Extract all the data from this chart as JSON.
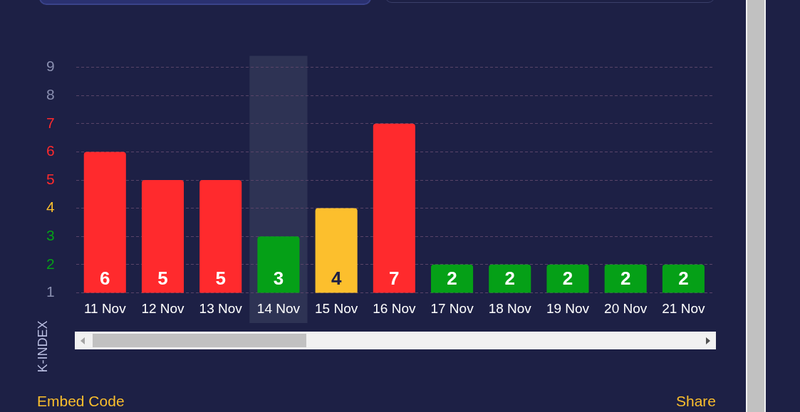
{
  "chart_data": {
    "type": "bar",
    "ylabel": "K-INDEX",
    "categories": [
      "11 Nov",
      "12 Nov",
      "13 Nov",
      "14 Nov",
      "15 Nov",
      "16 Nov",
      "17 Nov",
      "18 Nov",
      "19 Nov",
      "20 Nov",
      "21 Nov"
    ],
    "values": [
      6,
      5,
      5,
      3,
      4,
      7,
      2,
      2,
      2,
      2,
      2
    ],
    "value_labels": [
      "6",
      "5",
      "5",
      "3",
      "4",
      "7",
      "2",
      "2",
      "2",
      "2",
      "2"
    ],
    "colors": [
      "#ff2a2d",
      "#ff2a2d",
      "#ff2a2d",
      "#05a017",
      "#fcbf2d",
      "#ff2a2d",
      "#05a017",
      "#05a017",
      "#05a017",
      "#05a017",
      "#05a017"
    ],
    "ylim": [
      1,
      9
    ],
    "yticks": [
      1,
      2,
      3,
      4,
      5,
      6,
      7,
      8,
      9
    ],
    "grid": "y",
    "line_style": "dashed",
    "legend": false,
    "bands": [
      {
        "axis": "x",
        "from": "14 Nov",
        "to": "14 Nov",
        "color": "#2e3354"
      }
    ],
    "annotations": [
      "Embed Code",
      "Share"
    ]
  }
}
